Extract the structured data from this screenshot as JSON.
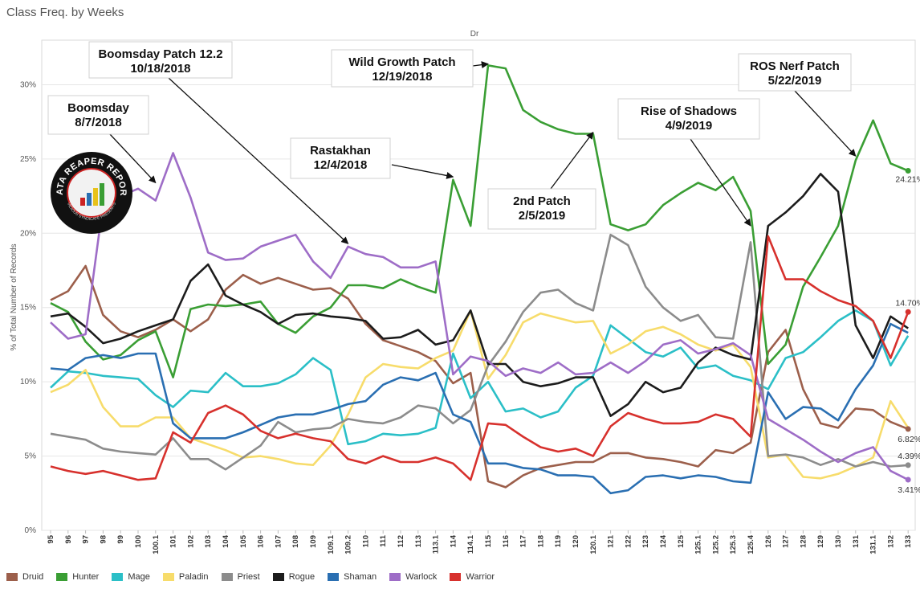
{
  "page_title": "Class Freq. by Weeks",
  "logo": {
    "text": "DATA REAPER REPORT",
    "subtext": "VICIOUS SYNDICATE PRESENTS"
  },
  "chart_data": {
    "type": "line",
    "title": "Class Freq. by Weeks",
    "column_header": "Dr",
    "ylabel": "% of Total Number of Records",
    "ylim": [
      0,
      33
    ],
    "yticks": [
      0,
      5,
      10,
      15,
      20,
      25,
      30
    ],
    "ytick_labels": [
      "0%",
      "5%",
      "10%",
      "15%",
      "20%",
      "25%",
      "30%"
    ],
    "grid": true,
    "legend_position": "bottom",
    "categories": [
      "95",
      "96",
      "97",
      "98",
      "99",
      "100",
      "100.1",
      "101",
      "102",
      "103",
      "104",
      "105",
      "106",
      "107",
      "108",
      "109",
      "109.1",
      "109.2",
      "110",
      "111",
      "112",
      "113",
      "113.1",
      "114",
      "114.1",
      "115",
      "116",
      "117",
      "118",
      "119",
      "120",
      "120.1",
      "121",
      "122",
      "123",
      "124",
      "125",
      "125.1",
      "125.2",
      "125.3",
      "125.4",
      "126",
      "127",
      "128",
      "129",
      "130",
      "131",
      "131.1",
      "132",
      "133"
    ],
    "series": [
      {
        "name": "Druid",
        "color": "#9c5f4b",
        "values": [
          15.5,
          16.1,
          17.8,
          14.5,
          13.4,
          13.0,
          13.5,
          14.2,
          13.4,
          14.2,
          16.2,
          17.2,
          16.6,
          17.0,
          16.6,
          16.2,
          16.3,
          15.6,
          13.9,
          12.8,
          12.4,
          12.0,
          11.4,
          9.9,
          10.6,
          3.3,
          2.9,
          3.7,
          4.2,
          4.4,
          4.6,
          4.6,
          5.2,
          5.2,
          4.9,
          4.8,
          4.6,
          4.3,
          5.4,
          5.2,
          5.9,
          12.0,
          13.5,
          9.5,
          7.2,
          6.9,
          8.2,
          8.1,
          7.3,
          6.82
        ]
      },
      {
        "name": "Hunter",
        "color": "#3a9e34",
        "values": [
          15.3,
          14.7,
          12.7,
          11.5,
          11.8,
          12.8,
          13.4,
          10.3,
          14.9,
          15.2,
          15.1,
          15.2,
          15.4,
          13.9,
          13.3,
          14.4,
          15.0,
          16.5,
          16.5,
          16.3,
          16.9,
          16.4,
          16.0,
          23.6,
          20.5,
          31.3,
          31.1,
          28.3,
          27.5,
          27.0,
          26.7,
          26.7,
          20.6,
          20.2,
          20.6,
          21.9,
          22.7,
          23.4,
          22.9,
          23.8,
          21.5,
          11.2,
          12.5,
          16.4,
          18.4,
          20.5,
          24.9,
          27.6,
          24.7,
          24.21
        ]
      },
      {
        "name": "Mage",
        "color": "#2bbfc7",
        "values": [
          9.6,
          10.7,
          10.6,
          10.4,
          10.3,
          10.2,
          9.1,
          8.3,
          9.4,
          9.3,
          10.6,
          9.7,
          9.7,
          9.9,
          10.5,
          11.6,
          10.8,
          5.8,
          6.0,
          6.5,
          6.4,
          6.5,
          6.9,
          11.9,
          8.9,
          10.0,
          8.0,
          8.2,
          7.6,
          8.0,
          9.6,
          10.4,
          13.8,
          12.9,
          12.0,
          11.7,
          12.3,
          10.9,
          11.1,
          10.4,
          10.1,
          9.5,
          11.6,
          12.0,
          13.0,
          14.1,
          14.8,
          14.1,
          11.1,
          13.1
        ]
      },
      {
        "name": "Paladin",
        "color": "#f7dc6b",
        "values": [
          9.3,
          9.8,
          10.8,
          8.3,
          7.0,
          7.0,
          7.6,
          7.6,
          6.2,
          5.8,
          5.4,
          4.9,
          5.0,
          4.8,
          4.5,
          4.4,
          5.7,
          7.8,
          10.3,
          11.2,
          11.0,
          10.9,
          11.6,
          12.1,
          14.8,
          10.2,
          11.8,
          14.0,
          14.6,
          14.3,
          14.0,
          14.1,
          11.9,
          12.5,
          13.4,
          13.7,
          13.2,
          12.5,
          12.1,
          12.5,
          11.0,
          4.9,
          5.1,
          3.6,
          3.5,
          3.8,
          4.3,
          4.9,
          8.7,
          6.9
        ]
      },
      {
        "name": "Priest",
        "color": "#8c8c8c",
        "values": [
          6.5,
          6.3,
          6.1,
          5.5,
          5.3,
          5.2,
          5.1,
          6.2,
          4.8,
          4.8,
          4.1,
          4.9,
          5.7,
          7.3,
          6.6,
          6.8,
          6.9,
          7.5,
          7.3,
          7.2,
          7.6,
          8.4,
          8.2,
          7.2,
          8.1,
          11.1,
          12.7,
          14.7,
          16.0,
          16.2,
          15.3,
          14.8,
          19.9,
          19.2,
          16.4,
          15.0,
          14.1,
          14.5,
          13.0,
          12.9,
          19.4,
          5.0,
          5.1,
          4.9,
          4.4,
          4.8,
          4.3,
          4.6,
          4.3,
          4.39
        ]
      },
      {
        "name": "Rogue",
        "color": "#1c1c1c",
        "values": [
          14.4,
          14.6,
          13.7,
          12.6,
          12.9,
          13.4,
          13.8,
          14.2,
          16.8,
          17.9,
          15.8,
          15.2,
          14.7,
          13.9,
          14.5,
          14.6,
          14.4,
          14.3,
          14.1,
          12.9,
          13.0,
          13.5,
          12.5,
          12.8,
          14.8,
          11.2,
          11.2,
          10.0,
          9.7,
          9.9,
          10.3,
          10.3,
          7.7,
          8.5,
          10.0,
          9.3,
          9.6,
          11.3,
          12.3,
          11.8,
          11.5,
          20.5,
          21.4,
          22.5,
          24.0,
          22.8,
          13.8,
          11.6,
          14.4,
          13.6
        ]
      },
      {
        "name": "Shaman",
        "color": "#2a6fb2",
        "values": [
          10.9,
          10.8,
          11.6,
          11.8,
          11.6,
          11.9,
          11.9,
          7.2,
          6.2,
          6.2,
          6.2,
          6.6,
          7.1,
          7.6,
          7.8,
          7.8,
          8.1,
          8.5,
          8.7,
          9.8,
          10.3,
          10.1,
          10.6,
          7.8,
          7.3,
          4.5,
          4.5,
          4.2,
          4.1,
          3.7,
          3.7,
          3.6,
          2.5,
          2.7,
          3.6,
          3.7,
          3.5,
          3.7,
          3.6,
          3.3,
          3.2,
          9.3,
          7.5,
          8.3,
          8.2,
          7.4,
          9.5,
          11.1,
          13.9,
          13.3
        ]
      },
      {
        "name": "Warlock",
        "color": "#9e6dc7",
        "values": [
          14.0,
          12.9,
          13.2,
          22.0,
          22.5,
          23.0,
          22.2,
          25.4,
          22.4,
          18.7,
          18.2,
          18.3,
          19.1,
          19.5,
          19.9,
          18.1,
          17.0,
          19.1,
          18.6,
          18.4,
          17.7,
          17.7,
          18.1,
          10.5,
          11.7,
          11.4,
          10.4,
          10.9,
          10.6,
          11.3,
          10.5,
          10.6,
          11.3,
          10.6,
          11.4,
          12.5,
          12.8,
          11.9,
          12.2,
          12.6,
          11.8,
          7.5,
          6.8,
          6.1,
          5.3,
          4.6,
          5.2,
          5.6,
          4.0,
          3.41
        ]
      },
      {
        "name": "Warrior",
        "color": "#d7312d",
        "values": [
          4.3,
          4.0,
          3.8,
          4.0,
          3.7,
          3.4,
          3.5,
          6.6,
          5.9,
          7.9,
          8.4,
          7.8,
          6.7,
          6.2,
          6.5,
          6.2,
          6.0,
          4.8,
          4.5,
          5.0,
          4.6,
          4.6,
          4.9,
          4.5,
          3.4,
          7.2,
          7.1,
          6.3,
          5.6,
          5.3,
          5.5,
          5.0,
          7.0,
          7.9,
          7.5,
          7.2,
          7.2,
          7.3,
          7.8,
          7.5,
          6.3,
          19.8,
          16.9,
          16.9,
          16.1,
          15.5,
          15.1,
          14.1,
          11.6,
          14.7
        ]
      }
    ],
    "end_labels": [
      {
        "series": "Hunter",
        "text": "24.21%"
      },
      {
        "series": "Warrior",
        "text": "14.70%"
      },
      {
        "series": "Druid",
        "text": "6.82%"
      },
      {
        "series": "Priest",
        "text": "4.39%"
      },
      {
        "series": "Warlock",
        "text": "3.41%"
      }
    ],
    "annotations": [
      {
        "lines": [
          "Boomsday",
          "8/7/2018"
        ],
        "target": "100.1",
        "target_value": 23.4
      },
      {
        "lines": [
          "Boomsday Patch 12.2",
          "10/18/2018"
        ],
        "target": "109.2",
        "target_value": 19.3
      },
      {
        "lines": [
          "Rastakhan",
          "12/4/2018"
        ],
        "target": "114",
        "target_value": 23.8
      },
      {
        "lines": [
          "Wild Growth Patch",
          "12/19/2018"
        ],
        "target": "115",
        "target_value": 31.4
      },
      {
        "lines": [
          "2nd Patch",
          "2/5/2019"
        ],
        "target": "120.1",
        "target_value": 26.8
      },
      {
        "lines": [
          "Rise of Shadows",
          "4/9/2019"
        ],
        "target": "125.4",
        "target_value": 20.5
      },
      {
        "lines": [
          "ROS Nerf Patch",
          "5/22/2019"
        ],
        "target": "131",
        "target_value": 25.2
      }
    ]
  }
}
